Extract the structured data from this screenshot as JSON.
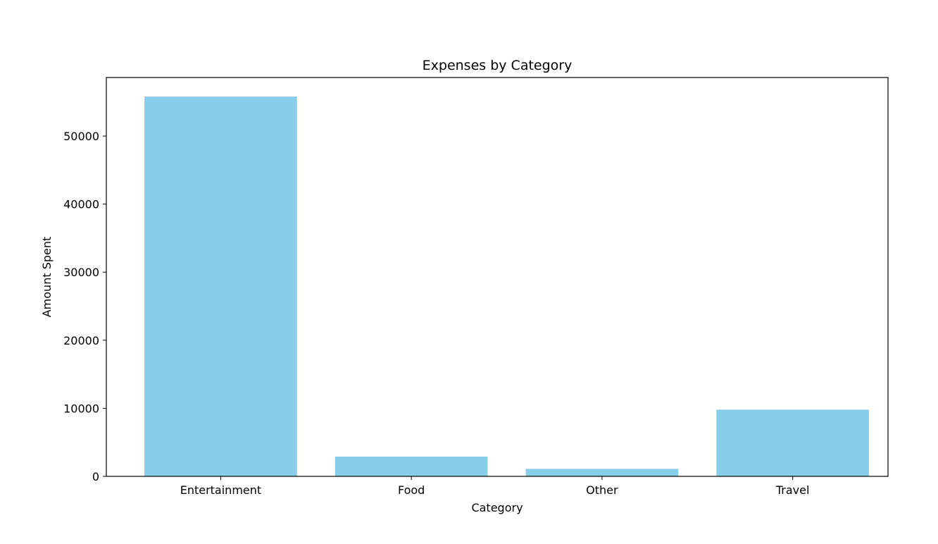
{
  "chart_data": {
    "type": "bar",
    "title": "Expenses by Category",
    "xlabel": "Category",
    "ylabel": "Amount Spent",
    "categories": [
      "Entertainment",
      "Food",
      "Other",
      "Travel"
    ],
    "values": [
      55800,
      2900,
      1100,
      9800
    ],
    "ylim": [
      0,
      58600
    ],
    "yticks": [
      0,
      10000,
      20000,
      30000,
      40000,
      50000
    ],
    "bar_color": "#87ceeb",
    "grid": false,
    "legend": "none"
  }
}
